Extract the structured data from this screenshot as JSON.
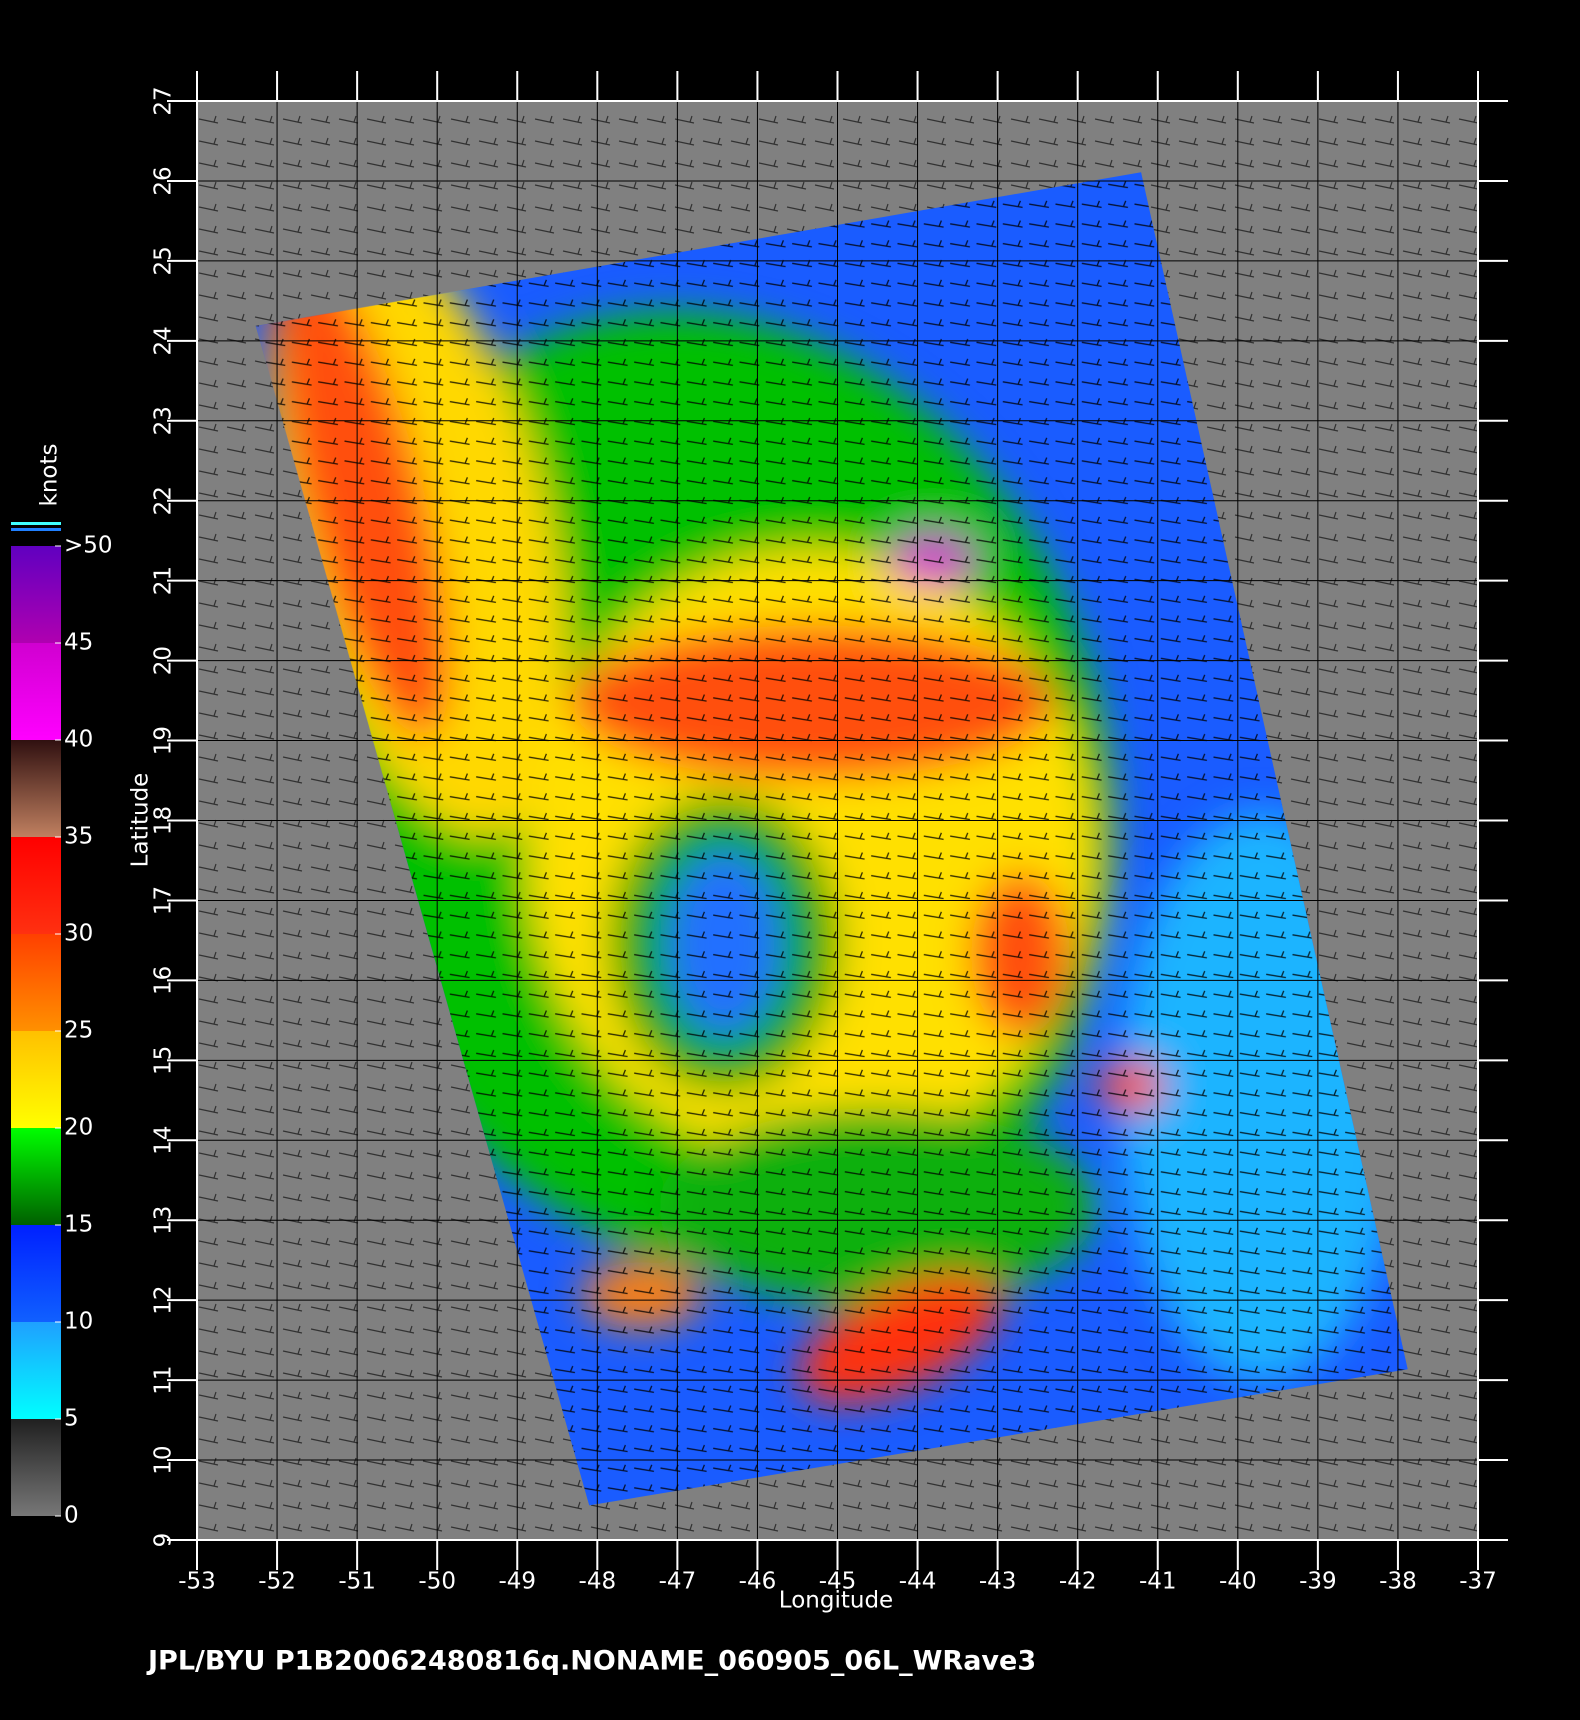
{
  "footer": "JPL/BYU  P1B20062480816q.NONAME_060905_06L_WRave3",
  "map": {
    "xlabel": "Longitude",
    "ylabel": "Latitude",
    "xlim": [
      -53,
      -37
    ],
    "ylim": [
      9,
      27
    ],
    "xticks": [
      -53,
      -52,
      -51,
      -50,
      -49,
      -48,
      -47,
      -46,
      -45,
      -44,
      -43,
      -42,
      -41,
      -40,
      -39,
      -38,
      -37
    ],
    "yticks": [
      9,
      10,
      11,
      12,
      13,
      14,
      15,
      16,
      17,
      18,
      19,
      20,
      21,
      22,
      23,
      24,
      25,
      26,
      27
    ]
  },
  "colorbar": {
    "label": "knots",
    "lim": [
      0,
      50
    ],
    "ticks": [
      0,
      5,
      10,
      15,
      20,
      25,
      30,
      35,
      40,
      45,
      {
        "value": 50,
        "label": ">50"
      }
    ],
    "colors": [
      [
        "#777777",
        "#202020"
      ],
      [
        "#00ffff",
        "#1fa0ff"
      ],
      [
        "#1060ff",
        "#0020ff"
      ],
      [
        "#006000",
        "#00ff00"
      ],
      [
        "#ffff00",
        "#ffc000"
      ],
      [
        "#ff9000",
        "#ff4000"
      ],
      [
        "#ff3010",
        "#ff0000"
      ],
      [
        "#c08060",
        "#301010"
      ],
      [
        "#ff00ff",
        "#d000d0"
      ],
      [
        "#b000b0",
        "#6000c0"
      ]
    ]
  }
}
